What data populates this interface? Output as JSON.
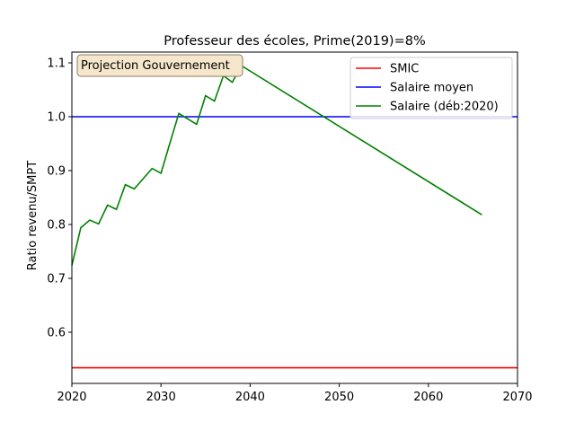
{
  "chart_data": {
    "type": "line",
    "title": "Professeur des écoles, Prime(2019)=8%",
    "xlabel": "",
    "ylabel": "Ratio revenu/SMPT",
    "xlim": [
      2020,
      2070
    ],
    "ylim": [
      0.505,
      1.12
    ],
    "xticks": [
      2020,
      2030,
      2040,
      2050,
      2060,
      2070
    ],
    "yticks": [
      0.6,
      0.7,
      0.8,
      0.9,
      1.0,
      1.1
    ],
    "ytick_labels": [
      "0.6",
      "0.7",
      "0.8",
      "0.9",
      "1.0",
      "1.1"
    ],
    "legend_position": "top-right",
    "annotation": "Projection Gouvernement",
    "series": [
      {
        "name": "SMIC",
        "color": "#ff0000",
        "x": [
          2020,
          2070
        ],
        "y": [
          0.534,
          0.534
        ]
      },
      {
        "name": "Salaire moyen",
        "color": "#0000ff",
        "x": [
          2020,
          2070
        ],
        "y": [
          1.0,
          1.0
        ]
      },
      {
        "name": "Salaire (déb:2020)",
        "color": "#008000",
        "x": [
          2020,
          2021,
          2022,
          2023,
          2024,
          2025,
          2026,
          2027,
          2028,
          2029,
          2030,
          2031,
          2032,
          2033,
          2034,
          2035,
          2036,
          2037,
          2038,
          2039,
          2066
        ],
        "y": [
          0.724,
          0.794,
          0.808,
          0.801,
          0.836,
          0.828,
          0.874,
          0.866,
          0.885,
          0.904,
          0.895,
          0.951,
          1.006,
          0.996,
          0.986,
          1.039,
          1.029,
          1.076,
          1.064,
          1.095,
          0.818
        ]
      }
    ]
  }
}
